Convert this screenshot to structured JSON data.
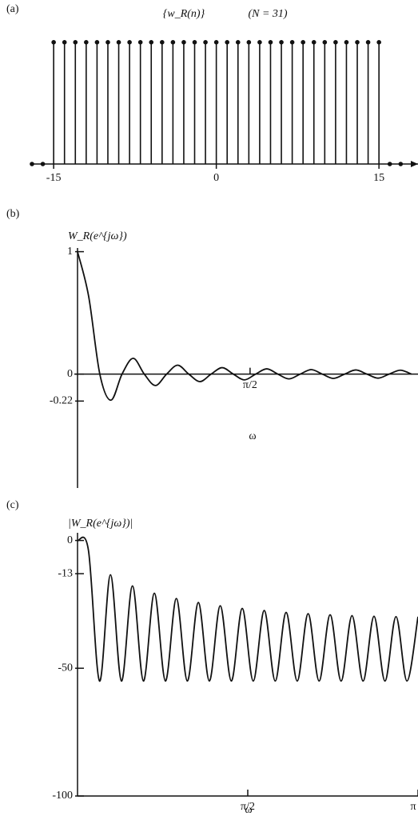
{
  "chart_data": [
    {
      "type": "stem",
      "label": "(a)",
      "title": "{w_R(n)}",
      "subtitle": "(N = 31)",
      "x": [
        -17,
        -16,
        -15,
        -14,
        -13,
        -12,
        -11,
        -10,
        -9,
        -8,
        -7,
        -6,
        -5,
        -4,
        -3,
        -2,
        -1,
        0,
        1,
        2,
        3,
        4,
        5,
        6,
        7,
        8,
        9,
        10,
        11,
        12,
        13,
        14,
        15,
        16,
        17
      ],
      "values": [
        0,
        0,
        1,
        1,
        1,
        1,
        1,
        1,
        1,
        1,
        1,
        1,
        1,
        1,
        1,
        1,
        1,
        1,
        1,
        1,
        1,
        1,
        1,
        1,
        1,
        1,
        1,
        1,
        1,
        1,
        1,
        1,
        1,
        0,
        0
      ],
      "xlim": [
        -17,
        18.6
      ],
      "ylim": [
        0,
        1.15
      ],
      "xticks": [
        -15,
        0,
        15
      ],
      "color": "#111111"
    },
    {
      "type": "line",
      "label": "(b)",
      "ylabel": "W_R(e^{jω})",
      "xlabel": "ω",
      "x": [
        0,
        0.101,
        0.203,
        0.304,
        0.405,
        0.507,
        0.608,
        0.709,
        0.811,
        0.912,
        1.013,
        1.115,
        1.216,
        1.317,
        1.419,
        1.52,
        1.621,
        1.723,
        1.824,
        1.925,
        2.027,
        2.128,
        2.229,
        2.331,
        2.432,
        2.533,
        2.635,
        2.736,
        2.837,
        2.939,
        3.04
      ],
      "values": [
        1,
        0.637,
        0,
        -0.213,
        0,
        0.129,
        0,
        -0.093,
        0,
        0.073,
        0,
        -0.061,
        0,
        0.053,
        0,
        -0.047,
        0,
        0.043,
        0,
        -0.039,
        0,
        0.037,
        0,
        -0.035,
        0,
        0.034,
        0,
        -0.033,
        0,
        0.032,
        0
      ],
      "xlim": [
        0,
        3.1
      ],
      "ylim": [
        -0.93,
        1.03
      ],
      "yticks": [
        1,
        0,
        -0.22
      ],
      "xticks": [
        {
          "value": 1.571,
          "label": "π/2"
        }
      ],
      "color": "#111111"
    },
    {
      "type": "line",
      "label": "(c)",
      "ylabel": "|W_R(e^{jω})|",
      "xlabel": "ω",
      "x": [
        0,
        0.101,
        0.203,
        0.304,
        0.405,
        0.507,
        0.608,
        0.709,
        0.811,
        0.912,
        1.013,
        1.115,
        1.216,
        1.317,
        1.419,
        1.52,
        1.621,
        1.723,
        1.824,
        1.925,
        2.027,
        2.128,
        2.229,
        2.331,
        2.432,
        2.533,
        2.635,
        2.736,
        2.837,
        2.939,
        3.04,
        3.142
      ],
      "values": [
        0,
        -3.92,
        -55,
        -13.43,
        -55,
        -17.79,
        -55,
        -20.64,
        -55,
        -22.7,
        -55,
        -24.29,
        -55,
        -25.56,
        -55,
        -26.59,
        -55,
        -27.43,
        -55,
        -28.17,
        -55,
        -28.66,
        -55,
        -29.1,
        -55,
        -29.42,
        -55,
        -29.65,
        -55,
        -29.79,
        -55,
        -29.83
      ],
      "xlim": [
        0,
        3.142
      ],
      "ylim": [
        -100,
        3
      ],
      "yticks": [
        0,
        -13,
        -50,
        -100
      ],
      "xticks": [
        {
          "value": 1.571,
          "label": "π/2"
        },
        {
          "value": 3.142,
          "label": "π"
        }
      ],
      "color": "#111111"
    }
  ]
}
